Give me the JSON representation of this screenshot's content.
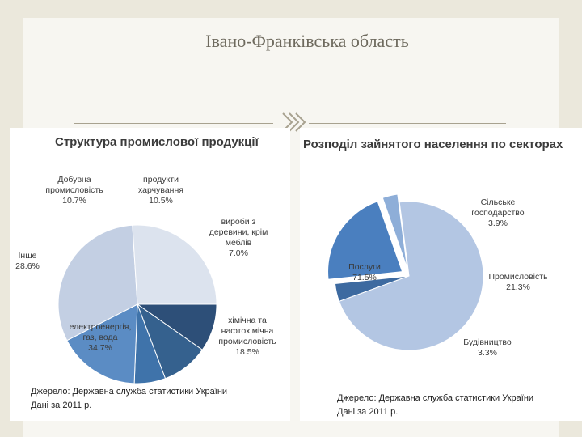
{
  "slide": {
    "title": "Івано-Франківська область",
    "icon": "chevron-right-icon"
  },
  "chart_data": [
    {
      "type": "pie",
      "title": "Структура промислової продукції",
      "slices": [
        {
          "label": [
            "Добувна",
            "промисловість",
            "10.7%"
          ],
          "value": 10.7,
          "color": "#2d4f78"
        },
        {
          "label": [
            "продукти",
            "харчування",
            "10.5%"
          ],
          "value": 10.5,
          "color": "#35618e"
        },
        {
          "label": [
            "вироби з",
            "деревини, крім",
            "меблів",
            "7.0%"
          ],
          "value": 7.0,
          "color": "#3f73aa"
        },
        {
          "label": [
            "хімічна та",
            "нафтохімічна",
            "промисловість",
            "18.5%"
          ],
          "value": 18.5,
          "color": "#5b8cc4"
        },
        {
          "label": [
            "електроенергія,",
            "газ, вода",
            "34.7%"
          ],
          "value": 34.7,
          "color": "#c3cfe3"
        },
        {
          "label": [
            "Інше",
            "28.6%"
          ],
          "value": 28.6,
          "color": "#dce3ee"
        }
      ],
      "source": [
        "Джерело: Державна служба статистики України",
        "Дані за 2011 р."
      ]
    },
    {
      "type": "pie",
      "title": "Розподіл зайнятого населення по секторах",
      "slices": [
        {
          "label": [
            "Сільське",
            "господарство",
            "3.9%"
          ],
          "value": 3.9,
          "color": "#3d6aa0"
        },
        {
          "label": [
            "Промисловість",
            "21.3%"
          ],
          "value": 21.3,
          "color": "#4a7fbf"
        },
        {
          "label": [
            "Будівництво",
            "3.3%"
          ],
          "value": 3.3,
          "color": "#8eaed8"
        },
        {
          "label": [
            "Послуги",
            "71.5%"
          ],
          "value": 71.5,
          "color": "#b3c6e3"
        }
      ],
      "source": [
        "Джерело: Державна служба статистики України",
        "Дані за 2011 р."
      ]
    }
  ]
}
